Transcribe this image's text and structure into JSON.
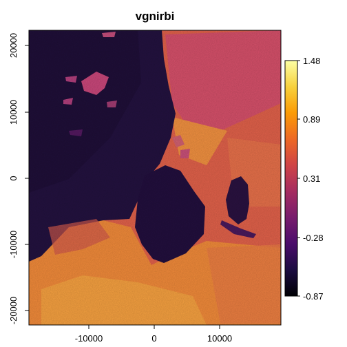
{
  "map": {
    "title": "vgnirbi",
    "x_ticks": [
      "-10000",
      "0",
      "10000"
    ],
    "y_ticks": [
      "20000",
      "10000",
      "0",
      "-10000",
      "-20000"
    ],
    "legend": {
      "ticks": [
        "1.48",
        "0.89",
        "0.31",
        "-0.28",
        "-0.87"
      ],
      "colors": [
        "#000004",
        "#1b0c41",
        "#4a0c6b",
        "#781c6d",
        "#a52c60",
        "#cf4446",
        "#ed6925",
        "#fb9b06",
        "#f7d13d",
        "#fcffa4"
      ]
    }
  }
}
